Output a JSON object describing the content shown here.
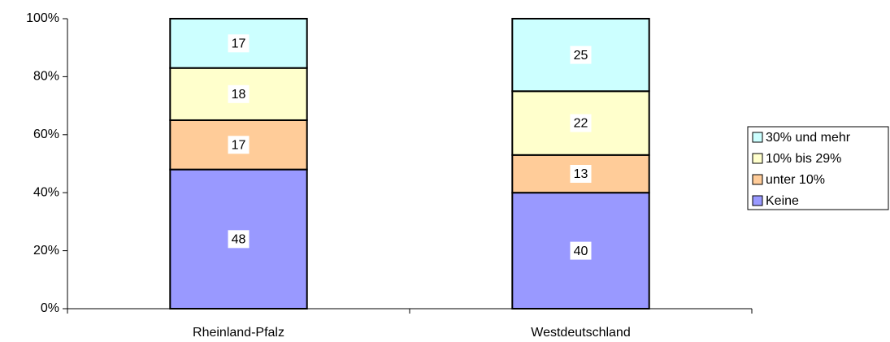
{
  "chart_data": {
    "type": "stacked_bar",
    "categories": [
      "Rheinland-Pfalz",
      "Westdeutschland"
    ],
    "series": [
      {
        "name": "Keine",
        "color": "#9999ff",
        "values": [
          48,
          40
        ]
      },
      {
        "name": "unter 10%",
        "color": "#ffcc99",
        "values": [
          17,
          13
        ]
      },
      {
        "name": "10% bis 29%",
        "color": "#ffffcc",
        "values": [
          18,
          22
        ]
      },
      {
        "name": "30% und mehr",
        "color": "#ccffff",
        "values": [
          17,
          25
        ]
      }
    ],
    "ylim": [
      0,
      100
    ],
    "yticks": [
      {
        "value": 0,
        "label": "0%"
      },
      {
        "value": 20,
        "label": "20%"
      },
      {
        "value": 40,
        "label": "40%"
      },
      {
        "value": 60,
        "label": "60%"
      },
      {
        "value": 80,
        "label": "80%"
      },
      {
        "value": 100,
        "label": "100%"
      }
    ],
    "legend": "right"
  }
}
